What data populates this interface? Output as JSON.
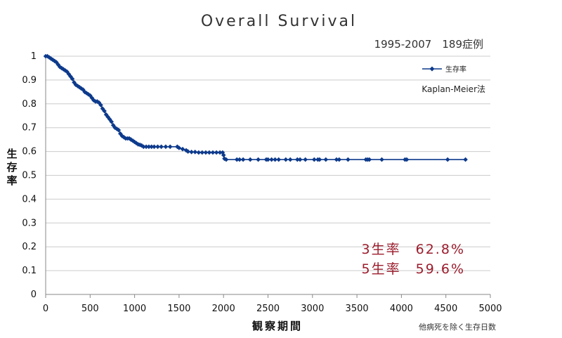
{
  "chart_data": {
    "type": "line",
    "title": "Overall Survival",
    "period_label": "1995-2007　189症例",
    "method_label": "Kaplan-Meier法",
    "ylabel": "生存率",
    "xlabel": "観察期間",
    "x_note": "他病死を除く生存日数",
    "legend_position": "top-right",
    "grid": true,
    "xlim": [
      0,
      5000
    ],
    "ylim": [
      0,
      1
    ],
    "x_ticks": [
      "0",
      "500",
      "1000",
      "1500",
      "2000",
      "2500",
      "3000",
      "3500",
      "4000",
      "4500",
      "5000"
    ],
    "y_ticks": [
      "0",
      "0.1",
      "0.2",
      "0.3",
      "0.4",
      "0.5",
      "0.6",
      "0.7",
      "0.8",
      "0.9",
      "1"
    ],
    "series": [
      {
        "name": "生存率",
        "color": "#0d3a8c",
        "points": [
          [
            0,
            1.0
          ],
          [
            20,
            1.0
          ],
          [
            40,
            0.995
          ],
          [
            60,
            0.99
          ],
          [
            80,
            0.985
          ],
          [
            100,
            0.98
          ],
          [
            120,
            0.975
          ],
          [
            140,
            0.965
          ],
          [
            160,
            0.955
          ],
          [
            180,
            0.95
          ],
          [
            200,
            0.945
          ],
          [
            220,
            0.94
          ],
          [
            240,
            0.935
          ],
          [
            260,
            0.925
          ],
          [
            280,
            0.915
          ],
          [
            300,
            0.905
          ],
          [
            320,
            0.89
          ],
          [
            340,
            0.88
          ],
          [
            360,
            0.875
          ],
          [
            380,
            0.87
          ],
          [
            400,
            0.865
          ],
          [
            420,
            0.86
          ],
          [
            440,
            0.85
          ],
          [
            460,
            0.845
          ],
          [
            480,
            0.84
          ],
          [
            500,
            0.835
          ],
          [
            520,
            0.825
          ],
          [
            540,
            0.815
          ],
          [
            560,
            0.81
          ],
          [
            580,
            0.81
          ],
          [
            600,
            0.805
          ],
          [
            620,
            0.795
          ],
          [
            640,
            0.78
          ],
          [
            660,
            0.77
          ],
          [
            680,
            0.755
          ],
          [
            700,
            0.745
          ],
          [
            720,
            0.735
          ],
          [
            740,
            0.725
          ],
          [
            760,
            0.71
          ],
          [
            780,
            0.7
          ],
          [
            800,
            0.695
          ],
          [
            820,
            0.69
          ],
          [
            840,
            0.675
          ],
          [
            860,
            0.665
          ],
          [
            880,
            0.66
          ],
          [
            900,
            0.655
          ],
          [
            920,
            0.655
          ],
          [
            940,
            0.655
          ],
          [
            960,
            0.65
          ],
          [
            980,
            0.645
          ],
          [
            1000,
            0.64
          ],
          [
            1020,
            0.635
          ],
          [
            1040,
            0.63
          ],
          [
            1060,
            0.628
          ],
          [
            1080,
            0.625
          ],
          [
            1100,
            0.62
          ],
          [
            1130,
            0.62
          ],
          [
            1160,
            0.62
          ],
          [
            1190,
            0.62
          ],
          [
            1220,
            0.62
          ],
          [
            1260,
            0.62
          ],
          [
            1300,
            0.62
          ],
          [
            1350,
            0.62
          ],
          [
            1400,
            0.62
          ],
          [
            1480,
            0.62
          ],
          [
            1500,
            0.615
          ],
          [
            1540,
            0.61
          ],
          [
            1580,
            0.605
          ],
          [
            1600,
            0.6
          ],
          [
            1640,
            0.598
          ],
          [
            1680,
            0.598
          ],
          [
            1720,
            0.596
          ],
          [
            1760,
            0.596
          ],
          [
            1800,
            0.596
          ],
          [
            1840,
            0.596
          ],
          [
            1880,
            0.596
          ],
          [
            1920,
            0.596
          ],
          [
            1960,
            0.596
          ],
          [
            1990,
            0.596
          ],
          [
            2000,
            0.585
          ],
          [
            2010,
            0.57
          ],
          [
            2030,
            0.566
          ],
          [
            2150,
            0.566
          ],
          [
            2180,
            0.566
          ],
          [
            2220,
            0.566
          ],
          [
            2300,
            0.566
          ],
          [
            2390,
            0.566
          ],
          [
            2480,
            0.566
          ],
          [
            2500,
            0.566
          ],
          [
            2540,
            0.566
          ],
          [
            2580,
            0.566
          ],
          [
            2620,
            0.566
          ],
          [
            2700,
            0.566
          ],
          [
            2750,
            0.566
          ],
          [
            2830,
            0.566
          ],
          [
            2860,
            0.566
          ],
          [
            2920,
            0.566
          ],
          [
            3020,
            0.566
          ],
          [
            3060,
            0.566
          ],
          [
            3080,
            0.566
          ],
          [
            3150,
            0.566
          ],
          [
            3270,
            0.566
          ],
          [
            3300,
            0.566
          ],
          [
            3400,
            0.566
          ],
          [
            3600,
            0.566
          ],
          [
            3620,
            0.566
          ],
          [
            3640,
            0.566
          ],
          [
            3780,
            0.566
          ],
          [
            4040,
            0.566
          ],
          [
            4060,
            0.566
          ],
          [
            4520,
            0.566
          ],
          [
            4720,
            0.566
          ]
        ]
      }
    ],
    "annotations": [
      {
        "text": "3生率　62.8%"
      },
      {
        "text": "5生率　59.6%"
      }
    ]
  }
}
